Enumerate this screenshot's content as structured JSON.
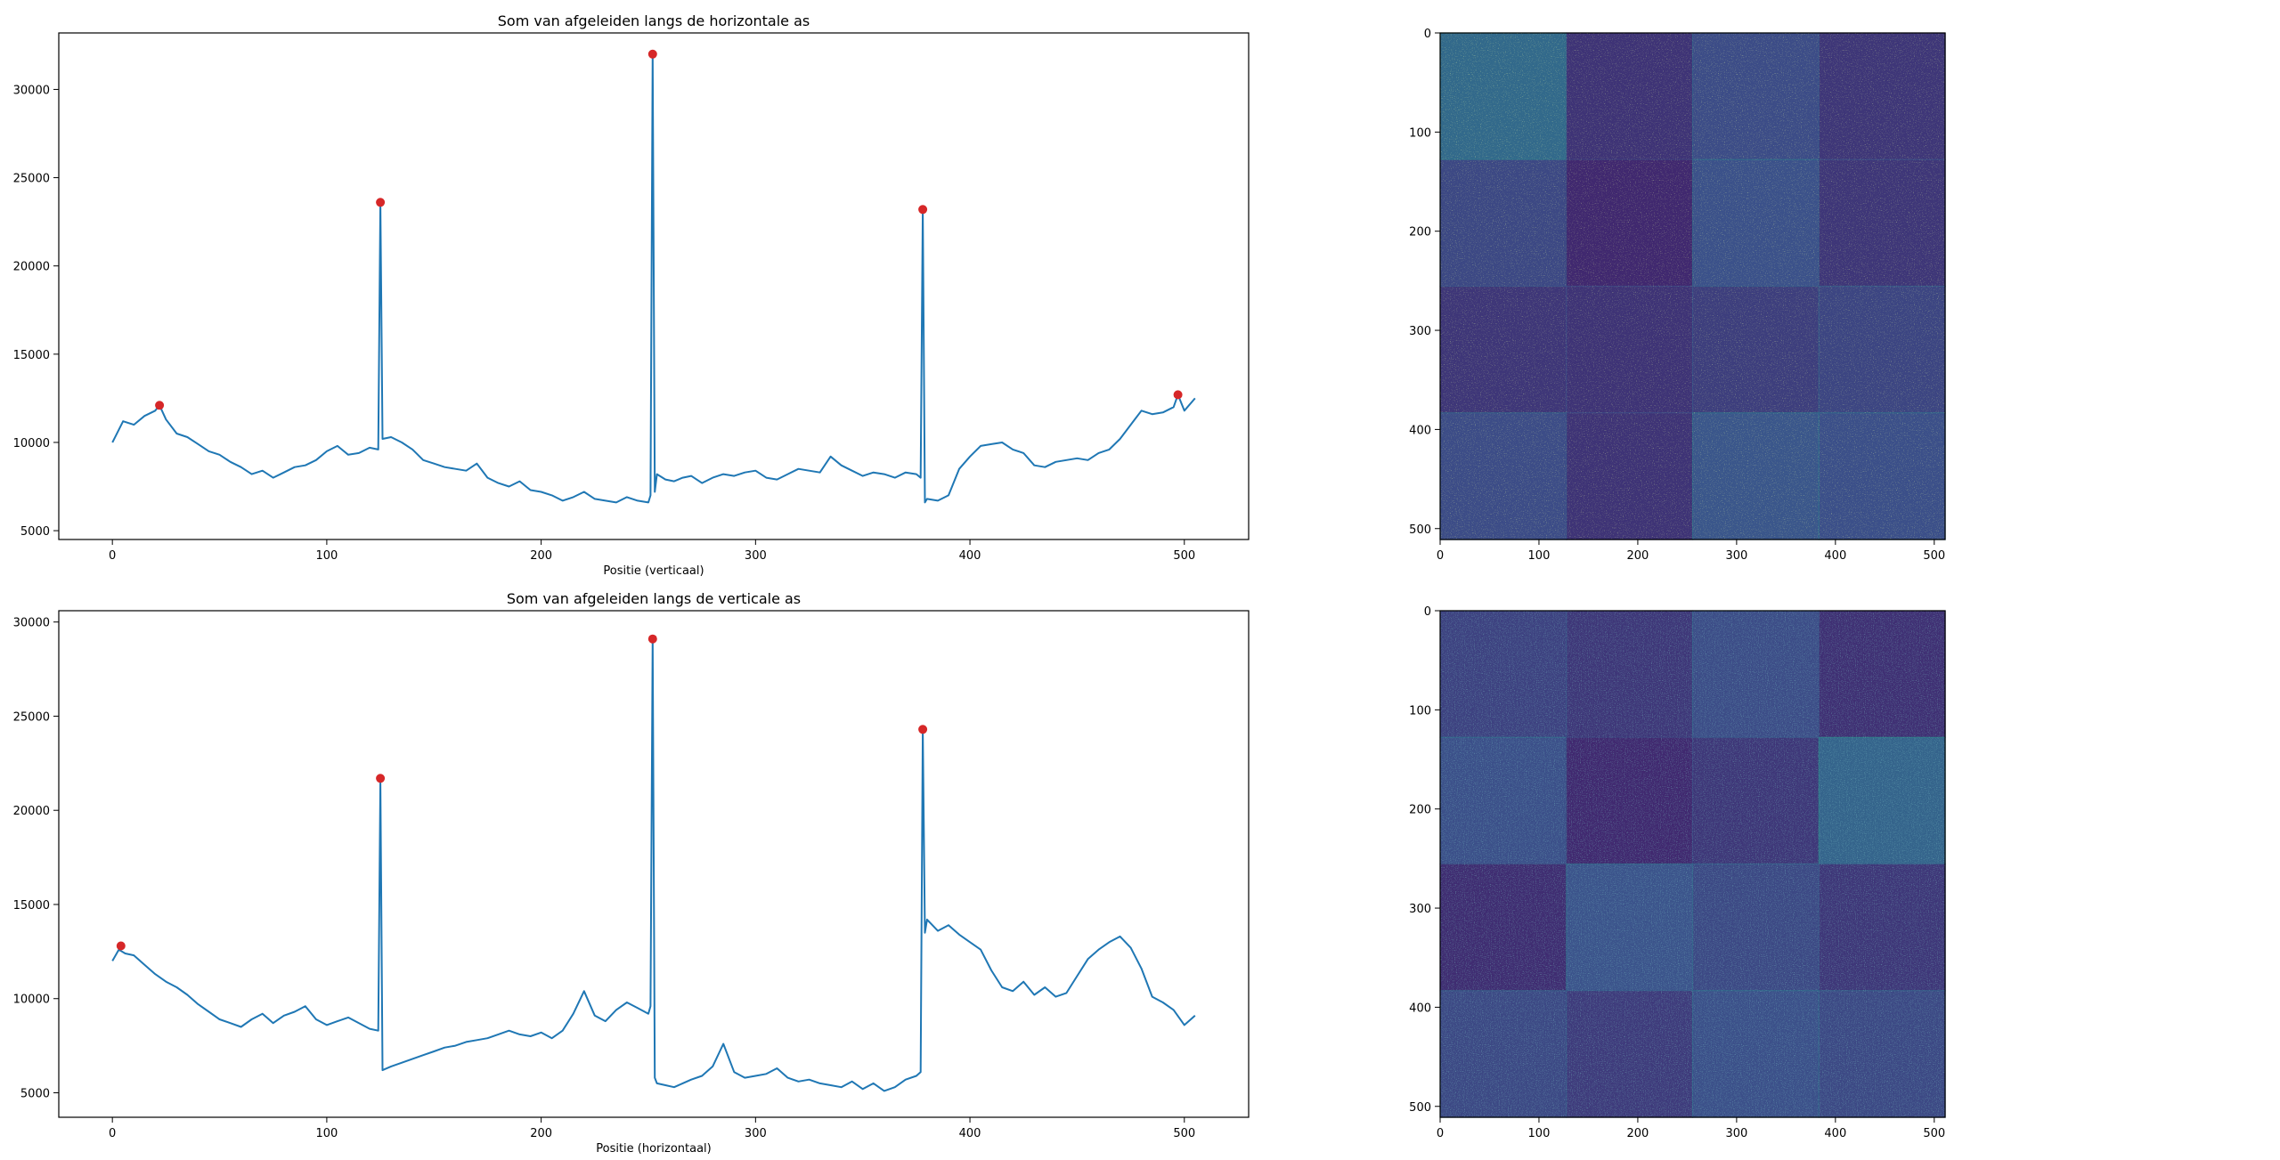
{
  "chart_data": [
    {
      "type": "line",
      "title": "Som van afgeleiden langs de horizontale as",
      "xlabel": "Positie (verticaal)",
      "ylabel": "",
      "xlim": [
        -25,
        530
      ],
      "ylim": [
        4500,
        33200
      ],
      "xticks": [
        0,
        100,
        200,
        300,
        400,
        500
      ],
      "yticks": [
        5000,
        10000,
        15000,
        20000,
        25000,
        30000
      ],
      "grid": false,
      "series": [
        {
          "color": "#1f77b4",
          "x": [
            0,
            5,
            10,
            15,
            20,
            22,
            25,
            30,
            35,
            40,
            45,
            50,
            55,
            60,
            65,
            70,
            75,
            80,
            85,
            90,
            95,
            100,
            105,
            110,
            115,
            120,
            124,
            125,
            126,
            130,
            135,
            140,
            145,
            150,
            155,
            160,
            165,
            170,
            175,
            180,
            185,
            190,
            195,
            200,
            205,
            210,
            215,
            220,
            225,
            230,
            235,
            240,
            245,
            250,
            251,
            252,
            253,
            254,
            258,
            262,
            266,
            270,
            275,
            280,
            285,
            290,
            295,
            300,
            305,
            310,
            315,
            320,
            325,
            330,
            335,
            340,
            345,
            350,
            355,
            360,
            365,
            370,
            375,
            377,
            378,
            379,
            380,
            385,
            390,
            395,
            400,
            405,
            410,
            415,
            420,
            425,
            430,
            435,
            440,
            445,
            450,
            455,
            460,
            465,
            470,
            475,
            480,
            485,
            490,
            495,
            497,
            500,
            505
          ],
          "values": [
            10000,
            11200,
            11000,
            11500,
            11800,
            12100,
            11300,
            10500,
            10300,
            9900,
            9500,
            9300,
            8900,
            8600,
            8200,
            8400,
            8000,
            8300,
            8600,
            8700,
            9000,
            9500,
            9800,
            9300,
            9400,
            9700,
            9600,
            23600,
            10200,
            10300,
            10000,
            9600,
            9000,
            8800,
            8600,
            8500,
            8400,
            8800,
            8000,
            7700,
            7500,
            7800,
            7300,
            7200,
            7000,
            6700,
            6900,
            7200,
            6800,
            6700,
            6600,
            6900,
            6700,
            6600,
            7000,
            32000,
            7200,
            8200,
            7900,
            7800,
            8000,
            8100,
            7700,
            8000,
            8200,
            8100,
            8300,
            8400,
            8000,
            7900,
            8200,
            8500,
            8400,
            8300,
            9200,
            8700,
            8400,
            8100,
            8300,
            8200,
            8000,
            8300,
            8200,
            8000,
            23200,
            6600,
            6800,
            6700,
            7000,
            8500,
            9200,
            9800,
            9900,
            10000,
            9600,
            9400,
            8700,
            8600,
            8900,
            9000,
            9100,
            9000,
            9400,
            9600,
            10200,
            11000,
            11800,
            11600,
            11700,
            12000,
            12700,
            11800,
            12500
          ]
        }
      ],
      "peaks": {
        "color": "#d62728",
        "x": [
          22,
          125,
          252,
          378,
          497
        ],
        "y": [
          12100,
          23600,
          32000,
          23200,
          12700
        ]
      }
    },
    {
      "type": "line",
      "title": "Som van afgeleiden langs de verticale as",
      "xlabel": "Positie (horizontaal)",
      "ylabel": "",
      "xlim": [
        -25,
        530
      ],
      "ylim": [
        3700,
        30600
      ],
      "xticks": [
        0,
        100,
        200,
        300,
        400,
        500
      ],
      "yticks": [
        5000,
        10000,
        15000,
        20000,
        25000,
        30000
      ],
      "grid": false,
      "series": [
        {
          "color": "#1f77b4",
          "x": [
            0,
            3,
            6,
            10,
            15,
            20,
            25,
            30,
            35,
            40,
            45,
            50,
            55,
            60,
            65,
            70,
            75,
            80,
            85,
            90,
            95,
            100,
            105,
            110,
            115,
            120,
            124,
            125,
            126,
            130,
            135,
            140,
            145,
            150,
            155,
            160,
            165,
            170,
            175,
            180,
            185,
            190,
            195,
            200,
            205,
            210,
            215,
            220,
            225,
            230,
            235,
            240,
            245,
            250,
            251,
            252,
            253,
            254,
            258,
            262,
            266,
            270,
            275,
            280,
            285,
            290,
            295,
            300,
            305,
            310,
            315,
            320,
            325,
            330,
            335,
            340,
            345,
            350,
            355,
            360,
            365,
            370,
            375,
            377,
            378,
            379,
            380,
            385,
            390,
            395,
            400,
            405,
            410,
            415,
            420,
            425,
            430,
            435,
            440,
            445,
            450,
            455,
            460,
            465,
            470,
            475,
            480,
            485,
            490,
            495,
            500,
            505
          ],
          "values": [
            12000,
            12600,
            12400,
            12300,
            11800,
            11300,
            10900,
            10600,
            10200,
            9700,
            9300,
            8900,
            8700,
            8500,
            8900,
            9200,
            8700,
            9100,
            9300,
            9600,
            8900,
            8600,
            8800,
            9000,
            8700,
            8400,
            8300,
            21600,
            6200,
            6400,
            6600,
            6800,
            7000,
            7200,
            7400,
            7500,
            7700,
            7800,
            7900,
            8100,
            8300,
            8100,
            8000,
            8200,
            7900,
            8300,
            9200,
            10400,
            9100,
            8800,
            9400,
            9800,
            9500,
            9200,
            9600,
            29100,
            5800,
            5500,
            5400,
            5300,
            5500,
            5700,
            5900,
            6400,
            7600,
            6100,
            5800,
            5900,
            6000,
            6300,
            5800,
            5600,
            5700,
            5500,
            5400,
            5300,
            5600,
            5200,
            5500,
            5100,
            5300,
            5700,
            5900,
            6100,
            24300,
            13500,
            14200,
            13600,
            13900,
            13400,
            13000,
            12600,
            11500,
            10600,
            10400,
            10900,
            10200,
            10600,
            10100,
            10300,
            11200,
            12100,
            12600,
            13000,
            13300,
            12700,
            11600,
            10100,
            9800,
            9400,
            8600,
            9100
          ]
        }
      ],
      "peaks": {
        "color": "#d62728",
        "x": [
          4,
          125,
          252,
          378
        ],
        "y": [
          12800,
          21700,
          29100,
          24300
        ]
      }
    },
    {
      "type": "heatmap",
      "colormap": "viridis",
      "xlim": [
        0,
        511
      ],
      "ylim": [
        511,
        0
      ],
      "xticks": [
        0,
        100,
        200,
        300,
        400,
        500
      ],
      "yticks": [
        0,
        100,
        200,
        300,
        400,
        500
      ],
      "block_grid": [
        4,
        4
      ],
      "block_brightness": [
        [
          0.62,
          0.28,
          0.42,
          0.3
        ],
        [
          0.4,
          0.22,
          0.45,
          0.3
        ],
        [
          0.3,
          0.28,
          0.34,
          0.38
        ],
        [
          0.42,
          0.28,
          0.48,
          0.44
        ]
      ]
    },
    {
      "type": "heatmap",
      "colormap": "viridis",
      "xlim": [
        0,
        511
      ],
      "ylim": [
        511,
        0
      ],
      "xticks": [
        0,
        100,
        200,
        300,
        400,
        500
      ],
      "yticks": [
        0,
        100,
        200,
        300,
        400,
        500
      ],
      "block_grid": [
        4,
        4
      ],
      "block_brightness": [
        [
          0.36,
          0.3,
          0.42,
          0.26
        ],
        [
          0.44,
          0.22,
          0.3,
          0.58
        ],
        [
          0.24,
          0.46,
          0.4,
          0.3
        ],
        [
          0.4,
          0.32,
          0.44,
          0.4
        ]
      ]
    }
  ]
}
